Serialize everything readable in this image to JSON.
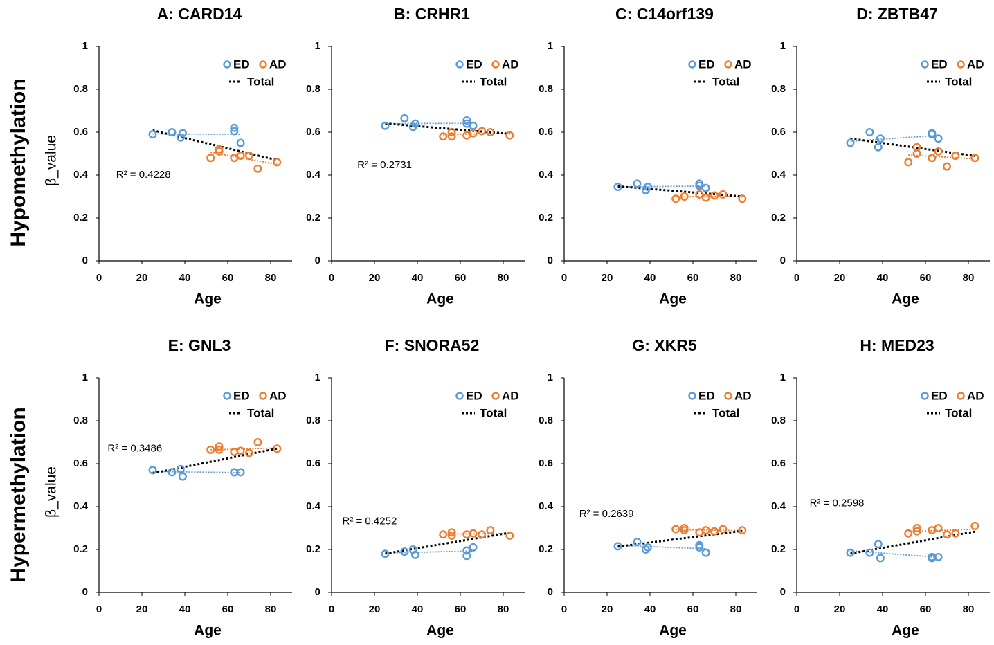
{
  "row_labels": [
    "Hypomethylation",
    "Hypermethylation"
  ],
  "chart_data": [
    {
      "type": "scatter",
      "title": "A: CARD14",
      "xlabel": "Age",
      "ylabel": "β_value",
      "annotation": "R² = 0.4228",
      "xlim": [
        0,
        90
      ],
      "ylim": [
        0,
        1
      ],
      "xticks": [
        0,
        20,
        40,
        60,
        80
      ],
      "yticks": [
        0,
        0.2,
        0.4,
        0.6,
        0.8,
        1
      ],
      "series": [
        {
          "name": "ED",
          "color": "#5b9bd5",
          "x": [
            25,
            34,
            38,
            39,
            63,
            63,
            66
          ],
          "y": [
            0.59,
            0.6,
            0.575,
            0.595,
            0.62,
            0.605,
            0.55
          ]
        },
        {
          "name": "AD",
          "color": "#ed7d31",
          "x": [
            52,
            56,
            56,
            63,
            66,
            70,
            74,
            83
          ],
          "y": [
            0.48,
            0.51,
            0.52,
            0.48,
            0.49,
            0.49,
            0.43,
            0.46
          ]
        }
      ],
      "trendline": {
        "name": "Total",
        "color": "#000000"
      }
    },
    {
      "type": "scatter",
      "title": "B: CRHR1",
      "xlabel": "Age",
      "annotation": "R² = 0.2731",
      "xlim": [
        0,
        90
      ],
      "ylim": [
        0,
        1
      ],
      "xticks": [
        0,
        20,
        40,
        60,
        80
      ],
      "yticks": [
        0,
        0.2,
        0.4,
        0.6,
        0.8,
        1
      ],
      "series": [
        {
          "name": "ED",
          "color": "#5b9bd5",
          "x": [
            25,
            34,
            38,
            39,
            63,
            63,
            66
          ],
          "y": [
            0.63,
            0.665,
            0.625,
            0.64,
            0.655,
            0.64,
            0.63
          ]
        },
        {
          "name": "AD",
          "color": "#ed7d31",
          "x": [
            52,
            56,
            56,
            63,
            66,
            70,
            74,
            83
          ],
          "y": [
            0.58,
            0.58,
            0.6,
            0.585,
            0.595,
            0.605,
            0.6,
            0.585
          ]
        }
      ],
      "trendline": {
        "name": "Total",
        "color": "#000000"
      }
    },
    {
      "type": "scatter",
      "title": "C: C14orf139",
      "xlabel": "Age",
      "xlim": [
        0,
        90
      ],
      "ylim": [
        0,
        1
      ],
      "xticks": [
        0,
        20,
        40,
        60,
        80
      ],
      "yticks": [
        0,
        0.2,
        0.4,
        0.6,
        0.8,
        1
      ],
      "series": [
        {
          "name": "ED",
          "color": "#5b9bd5",
          "x": [
            25,
            34,
            38,
            39,
            63,
            63,
            66
          ],
          "y": [
            0.345,
            0.36,
            0.33,
            0.345,
            0.36,
            0.35,
            0.34
          ]
        },
        {
          "name": "AD",
          "color": "#ed7d31",
          "x": [
            52,
            56,
            56,
            63,
            66,
            70,
            74,
            83
          ],
          "y": [
            0.29,
            0.3,
            0.3,
            0.31,
            0.295,
            0.305,
            0.31,
            0.29
          ]
        }
      ],
      "trendline": {
        "name": "Total",
        "color": "#000000"
      }
    },
    {
      "type": "scatter",
      "title": "D: ZBTB47",
      "xlabel": "Age",
      "xlim": [
        0,
        90
      ],
      "ylim": [
        0,
        1
      ],
      "xticks": [
        0,
        20,
        40,
        60,
        80
      ],
      "yticks": [
        0,
        0.2,
        0.4,
        0.6,
        0.8,
        1
      ],
      "series": [
        {
          "name": "ED",
          "color": "#5b9bd5",
          "x": [
            25,
            34,
            38,
            39,
            63,
            63,
            66
          ],
          "y": [
            0.55,
            0.6,
            0.53,
            0.57,
            0.595,
            0.59,
            0.57
          ]
        },
        {
          "name": "AD",
          "color": "#ed7d31",
          "x": [
            52,
            56,
            56,
            63,
            66,
            70,
            74,
            83
          ],
          "y": [
            0.46,
            0.5,
            0.53,
            0.48,
            0.51,
            0.44,
            0.49,
            0.48
          ]
        }
      ],
      "trendline": {
        "name": "Total",
        "color": "#000000"
      }
    },
    {
      "type": "scatter",
      "title": "E: GNL3",
      "xlabel": "Age",
      "ylabel": "β_value",
      "annotation": "R² = 0.3486",
      "xlim": [
        0,
        90
      ],
      "ylim": [
        0,
        1
      ],
      "xticks": [
        0,
        20,
        40,
        60,
        80
      ],
      "yticks": [
        0,
        0.2,
        0.4,
        0.6,
        0.8,
        1
      ],
      "series": [
        {
          "name": "ED",
          "color": "#5b9bd5",
          "x": [
            25,
            34,
            38,
            39,
            63,
            63,
            66
          ],
          "y": [
            0.57,
            0.56,
            0.575,
            0.54,
            0.56,
            0.56,
            0.56
          ]
        },
        {
          "name": "AD",
          "color": "#ed7d31",
          "x": [
            52,
            56,
            56,
            63,
            66,
            70,
            74,
            83
          ],
          "y": [
            0.665,
            0.665,
            0.68,
            0.655,
            0.66,
            0.65,
            0.7,
            0.67
          ]
        }
      ],
      "trendline": {
        "name": "Total",
        "color": "#000000"
      }
    },
    {
      "type": "scatter",
      "title": "F: SNORA52",
      "xlabel": "Age",
      "annotation": "R² = 0.4252",
      "xlim": [
        0,
        90
      ],
      "ylim": [
        0,
        1
      ],
      "xticks": [
        0,
        20,
        40,
        60,
        80
      ],
      "yticks": [
        0,
        0.2,
        0.4,
        0.6,
        0.8,
        1
      ],
      "series": [
        {
          "name": "ED",
          "color": "#5b9bd5",
          "x": [
            25,
            34,
            38,
            39,
            63,
            63,
            66
          ],
          "y": [
            0.18,
            0.19,
            0.2,
            0.175,
            0.17,
            0.195,
            0.21
          ]
        },
        {
          "name": "AD",
          "color": "#ed7d31",
          "x": [
            52,
            56,
            56,
            63,
            66,
            70,
            74,
            83
          ],
          "y": [
            0.27,
            0.265,
            0.28,
            0.27,
            0.275,
            0.27,
            0.29,
            0.265
          ]
        }
      ],
      "trendline": {
        "name": "Total",
        "color": "#000000"
      }
    },
    {
      "type": "scatter",
      "title": "G: XKR5",
      "xlabel": "Age",
      "annotation": "R² = 0.2639",
      "xlim": [
        0,
        90
      ],
      "ylim": [
        0,
        1
      ],
      "xticks": [
        0,
        20,
        40,
        60,
        80
      ],
      "yticks": [
        0,
        0.2,
        0.4,
        0.6,
        0.8,
        1
      ],
      "series": [
        {
          "name": "ED",
          "color": "#5b9bd5",
          "x": [
            25,
            34,
            38,
            39,
            63,
            63,
            66
          ],
          "y": [
            0.215,
            0.235,
            0.2,
            0.21,
            0.22,
            0.21,
            0.185
          ]
        },
        {
          "name": "AD",
          "color": "#ed7d31",
          "x": [
            52,
            56,
            56,
            63,
            66,
            70,
            74,
            83
          ],
          "y": [
            0.295,
            0.29,
            0.3,
            0.28,
            0.29,
            0.285,
            0.295,
            0.29
          ]
        }
      ],
      "trendline": {
        "name": "Total",
        "color": "#000000"
      }
    },
    {
      "type": "scatter",
      "title": "H: MED23",
      "xlabel": "Age",
      "annotation": "R² = 0.2598",
      "xlim": [
        0,
        90
      ],
      "ylim": [
        0,
        1
      ],
      "xticks": [
        0,
        20,
        40,
        60,
        80
      ],
      "yticks": [
        0,
        0.2,
        0.4,
        0.6,
        0.8,
        1
      ],
      "series": [
        {
          "name": "ED",
          "color": "#5b9bd5",
          "x": [
            25,
            34,
            38,
            39,
            63,
            63,
            66
          ],
          "y": [
            0.185,
            0.185,
            0.225,
            0.16,
            0.165,
            0.16,
            0.165
          ]
        },
        {
          "name": "AD",
          "color": "#ed7d31",
          "x": [
            52,
            56,
            56,
            63,
            66,
            70,
            74,
            83
          ],
          "y": [
            0.275,
            0.285,
            0.3,
            0.29,
            0.3,
            0.27,
            0.275,
            0.31
          ]
        }
      ],
      "trendline": {
        "name": "Total",
        "color": "#000000"
      }
    }
  ]
}
